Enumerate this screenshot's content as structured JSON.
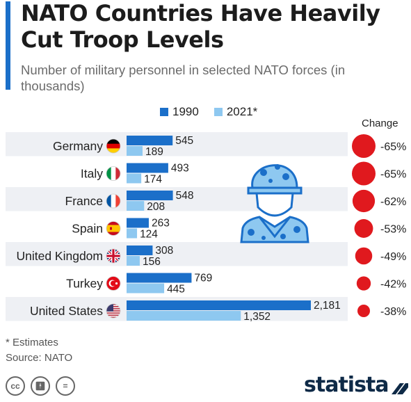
{
  "header": {
    "title": "NATO Countries Have Heavily Cut Troop Levels",
    "subtitle": "Number of military personnel in selected NATO forces (in thousands)"
  },
  "legend": {
    "series1": "1990",
    "series2": "2021*"
  },
  "change_header": "Change",
  "colors": {
    "accent": "#1b6fc9",
    "bar1990": "#1b6fc9",
    "bar2021": "#8ec8f0",
    "circle": "#e0191e",
    "rowBand": "#eef0f4"
  },
  "chart_data": {
    "type": "bar",
    "orientation": "horizontal",
    "categories": [
      "Germany",
      "Italy",
      "France",
      "Spain",
      "United Kingdom",
      "Turkey",
      "United States"
    ],
    "flags": [
      "flag-germany-icon",
      "flag-italy-icon",
      "flag-france-icon",
      "flag-spain-icon",
      "flag-uk-icon",
      "flag-turkey-icon",
      "flag-usa-icon"
    ],
    "series": [
      {
        "name": "1990",
        "values": [
          545,
          493,
          548,
          263,
          308,
          769,
          2181
        ],
        "labels": [
          "545",
          "493",
          "548",
          "263",
          "308",
          "769",
          "2,181"
        ]
      },
      {
        "name": "2021*",
        "values": [
          189,
          174,
          208,
          124,
          156,
          445,
          1352
        ],
        "labels": [
          "189",
          "174",
          "208",
          "124",
          "156",
          "445",
          "1,352"
        ]
      }
    ],
    "change": [
      "-65%",
      "-65%",
      "-62%",
      "-53%",
      "-49%",
      "-42%",
      "-38%"
    ],
    "change_values": [
      -65,
      -65,
      -62,
      -53,
      -49,
      -42,
      -38
    ],
    "xlim": [
      0,
      2181
    ]
  },
  "footer": {
    "note": "* Estimates",
    "source": "Source: NATO",
    "brand": "statista"
  }
}
